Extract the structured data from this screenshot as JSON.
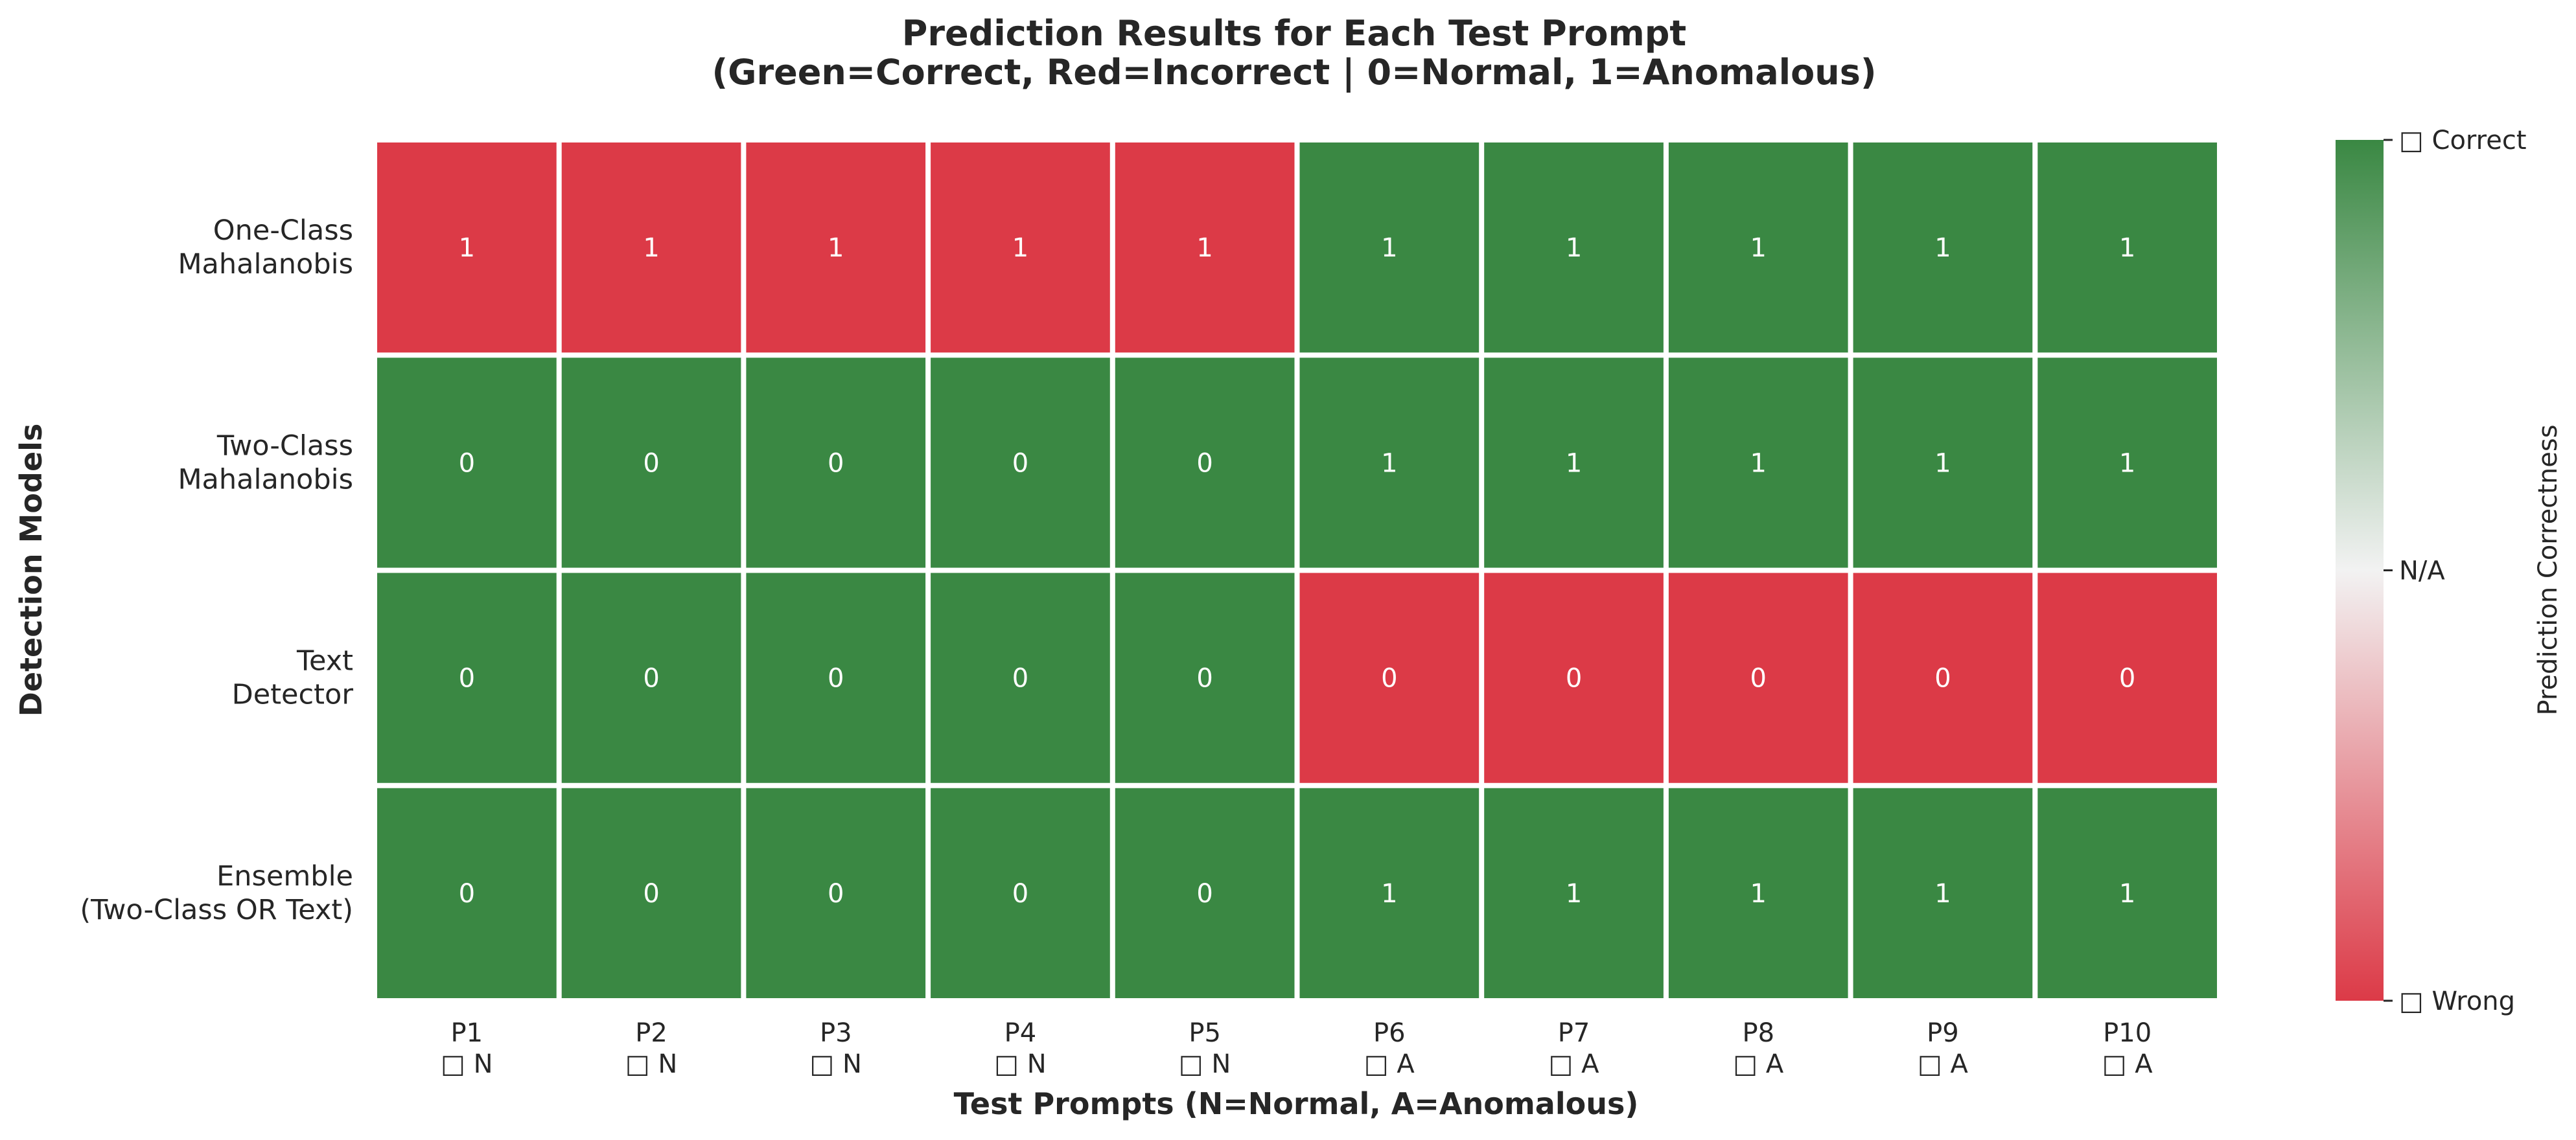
{
  "chart_data": {
    "type": "heatmap",
    "title": "Prediction Results for Each Test Prompt",
    "subtitle": "(Green=Correct, Red=Incorrect | 0=Normal, 1=Anomalous)",
    "xlabel": "Test Prompts (N=Normal, A=Anomalous)",
    "ylabel": "Detection Models",
    "rows": [
      [
        "One-Class",
        "Mahalanobis"
      ],
      [
        "Two-Class",
        "Mahalanobis"
      ],
      [
        "Text",
        "Detector"
      ],
      [
        "Ensemble",
        "(Two-Class OR Text)"
      ]
    ],
    "columns": [
      [
        "P1",
        "□ N"
      ],
      [
        "P2",
        "□ N"
      ],
      [
        "P3",
        "□ N"
      ],
      [
        "P4",
        "□ N"
      ],
      [
        "P5",
        "□ N"
      ],
      [
        "P6",
        "□ A"
      ],
      [
        "P7",
        "□ A"
      ],
      [
        "P8",
        "□ A"
      ],
      [
        "P9",
        "□ A"
      ],
      [
        "P10",
        "□ A"
      ]
    ],
    "predictions": [
      [
        1,
        1,
        1,
        1,
        1,
        1,
        1,
        1,
        1,
        1
      ],
      [
        0,
        0,
        0,
        0,
        0,
        1,
        1,
        1,
        1,
        1
      ],
      [
        0,
        0,
        0,
        0,
        0,
        0,
        0,
        0,
        0,
        0
      ],
      [
        0,
        0,
        0,
        0,
        0,
        1,
        1,
        1,
        1,
        1
      ]
    ],
    "correctness": [
      [
        -1,
        -1,
        -1,
        -1,
        -1,
        1,
        1,
        1,
        1,
        1
      ],
      [
        1,
        1,
        1,
        1,
        1,
        1,
        1,
        1,
        1,
        1
      ],
      [
        1,
        1,
        1,
        1,
        1,
        -1,
        -1,
        -1,
        -1,
        -1
      ],
      [
        1,
        1,
        1,
        1,
        1,
        1,
        1,
        1,
        1,
        1
      ]
    ],
    "colorbar": {
      "label": "Prediction Correctness",
      "range": [
        -1,
        1
      ],
      "ticks": [
        {
          "value": 1,
          "label": "□ Correct"
        },
        {
          "value": 0,
          "label": "N/A"
        },
        {
          "value": -1,
          "label": "□ Wrong"
        }
      ]
    },
    "colors": {
      "correct": "#3a8843",
      "neutral": "#f2f2f2",
      "wrong": "#dc3a47",
      "cell_text": "#ffffff"
    }
  }
}
